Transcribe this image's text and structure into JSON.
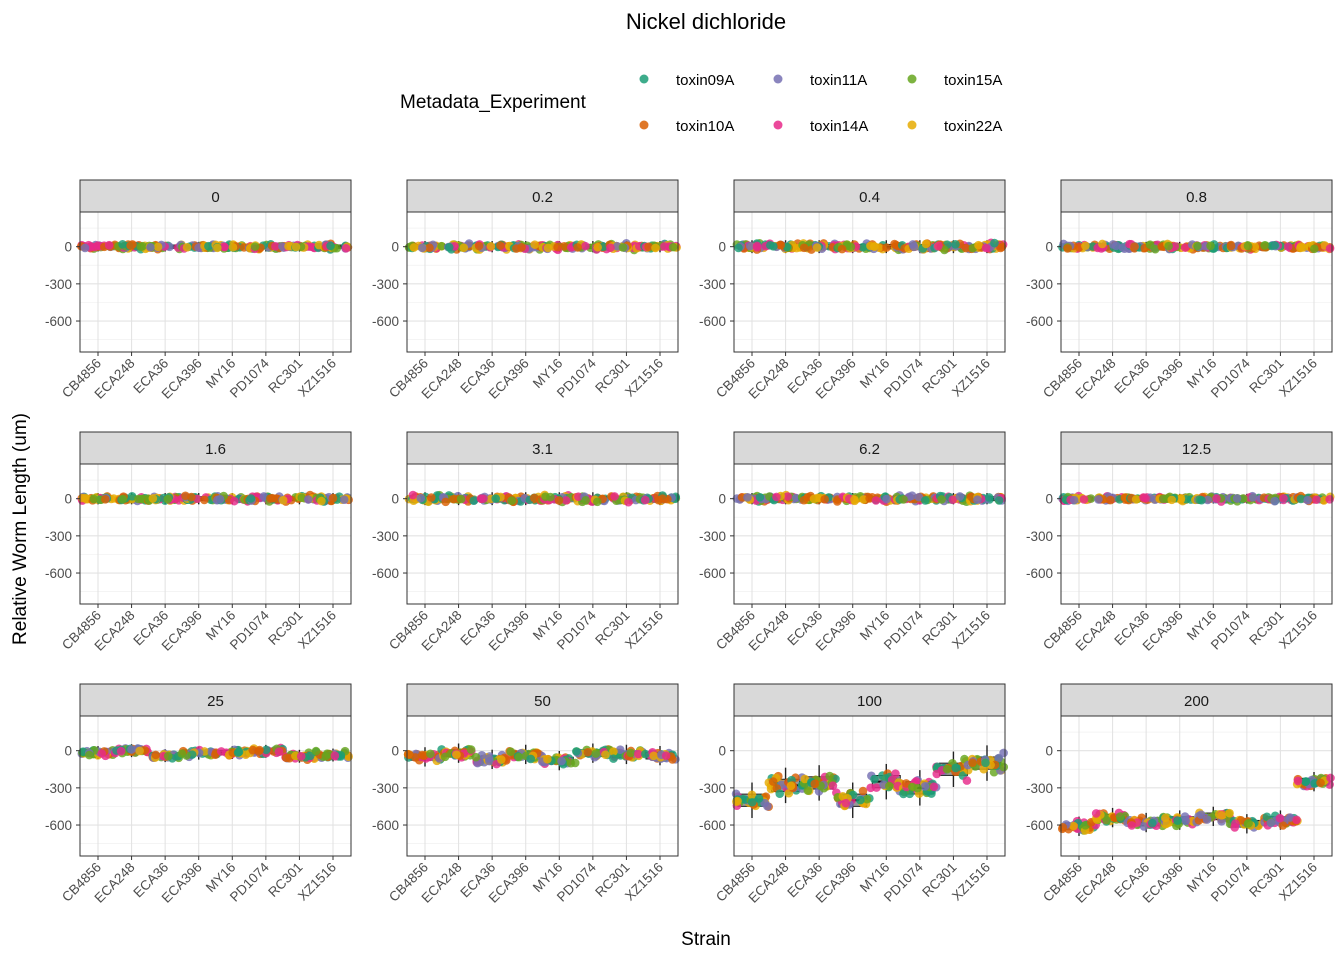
{
  "chart_data": {
    "type": "scatter",
    "title": "Nickel dichloride",
    "xlabel": "Strain",
    "ylabel": "Relative Worm Length (um)",
    "ylim": [
      -850,
      280
    ],
    "yticks": [
      0,
      -300,
      -600
    ],
    "grid": true,
    "legend": {
      "title": "Metadata_Experiment",
      "placement": "top",
      "entries": [
        {
          "name": "toxin09A",
          "color": "#1b9e77"
        },
        {
          "name": "toxin10A",
          "color": "#d95f02"
        },
        {
          "name": "toxin11A",
          "color": "#7570b3"
        },
        {
          "name": "toxin14A",
          "color": "#e7298a"
        },
        {
          "name": "toxin15A",
          "color": "#66a61e"
        },
        {
          "name": "toxin22A",
          "color": "#e6ab02"
        }
      ]
    },
    "strains": [
      "CB4856",
      "ECA248",
      "ECA36",
      "ECA396",
      "MY16",
      "PD1074",
      "RC301",
      "XZ1516"
    ],
    "panels": [
      {
        "label": "0",
        "medians": [
          0,
          0,
          0,
          0,
          0,
          0,
          0,
          0
        ],
        "spread": 30
      },
      {
        "label": "0.2",
        "medians": [
          0,
          0,
          0,
          0,
          0,
          0,
          0,
          0
        ],
        "spread": 35
      },
      {
        "label": "0.4",
        "medians": [
          0,
          0,
          0,
          0,
          0,
          0,
          0,
          0
        ],
        "spread": 40
      },
      {
        "label": "0.8",
        "medians": [
          0,
          0,
          0,
          0,
          0,
          0,
          0,
          0
        ],
        "spread": 30
      },
      {
        "label": "1.6",
        "medians": [
          0,
          0,
          0,
          0,
          0,
          0,
          0,
          0
        ],
        "spread": 35
      },
      {
        "label": "3.1",
        "medians": [
          0,
          0,
          0,
          0,
          0,
          0,
          0,
          0
        ],
        "spread": 40
      },
      {
        "label": "6.2",
        "medians": [
          0,
          0,
          0,
          0,
          0,
          0,
          0,
          0
        ],
        "spread": 35
      },
      {
        "label": "12.5",
        "medians": [
          0,
          0,
          0,
          0,
          0,
          0,
          0,
          0
        ],
        "spread": 30
      },
      {
        "label": "25",
        "medians": [
          -15,
          0,
          -40,
          -20,
          -15,
          -5,
          -45,
          -35
        ],
        "spread": 40
      },
      {
        "label": "50",
        "medians": [
          -50,
          -20,
          -70,
          -30,
          -80,
          -20,
          -30,
          -40
        ],
        "spread": 60
      },
      {
        "label": "100",
        "medians": [
          -400,
          -280,
          -260,
          -400,
          -250,
          -300,
          -150,
          -100
        ],
        "spread": 110
      },
      {
        "label": "200",
        "medians": [
          -610,
          -540,
          -580,
          -560,
          -530,
          -590,
          -560,
          -250
        ],
        "spread": 60
      }
    ]
  }
}
